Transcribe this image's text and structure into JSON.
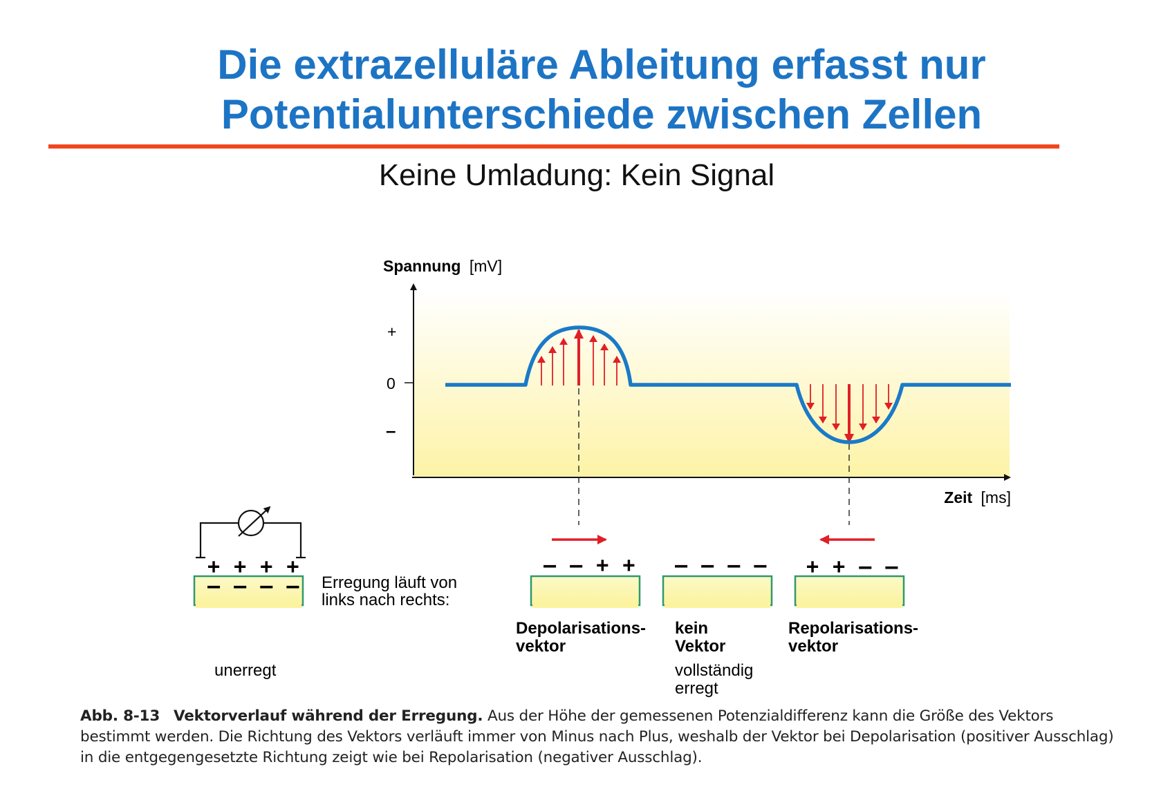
{
  "title": {
    "line1": "Die extrazelluläre Ableitung erfasst nur",
    "line2": "Potentialunterschiede zwischen Zellen"
  },
  "subtitle": "Keine Umladung: Kein Signal",
  "graph": {
    "y_axis_label_bold": "Spannung",
    "y_axis_label_unit": "[mV]",
    "x_axis_label_bold": "Zeit",
    "x_axis_label_unit": "[ms]",
    "y_ticks": [
      "+",
      "0",
      "–"
    ]
  },
  "cells": {
    "unerregt": {
      "top_charges": "+ + + +",
      "inner_charges": "– – – –",
      "label": "unerregt"
    },
    "note": {
      "line1": "Erregung läuft von",
      "line2": "links nach rechts:"
    },
    "depolarisation": {
      "charges": "– – + +",
      "label_line1": "Depolarisations-",
      "label_line2": "vektor"
    },
    "kein_vektor": {
      "charges": "– – – –",
      "label_line1": "kein",
      "label_line2": "Vektor",
      "sub_line1": "vollständig",
      "sub_line2": "erregt"
    },
    "repolarisation": {
      "charges": "+ + – –",
      "label_line1": "Repolarisations-",
      "label_line2": "vektor"
    }
  },
  "caption": {
    "fig_label": "Abb. 8-13",
    "fig_title": "Vektorverlauf während der Erregung.",
    "text": "Aus der Höhe der gemessenen Potenzialdifferenz kann die Größe des Vektors bestimmt werden. Die Richtung des Vektors verläuft immer von Minus nach Plus, weshalb der Vektor bei Depolarisation (positiver Ausschlag) in die entgegengesetzte Richtung zeigt wie bei Repolarisation (negativer Ausschlag)."
  },
  "colors": {
    "title": "#1d74c4",
    "rule": "#f0471e",
    "curve": "#1a7ac8",
    "vector": "#e01f26",
    "cell_fill": "#fbf6b0",
    "cell_border": "#2e9a6a"
  }
}
